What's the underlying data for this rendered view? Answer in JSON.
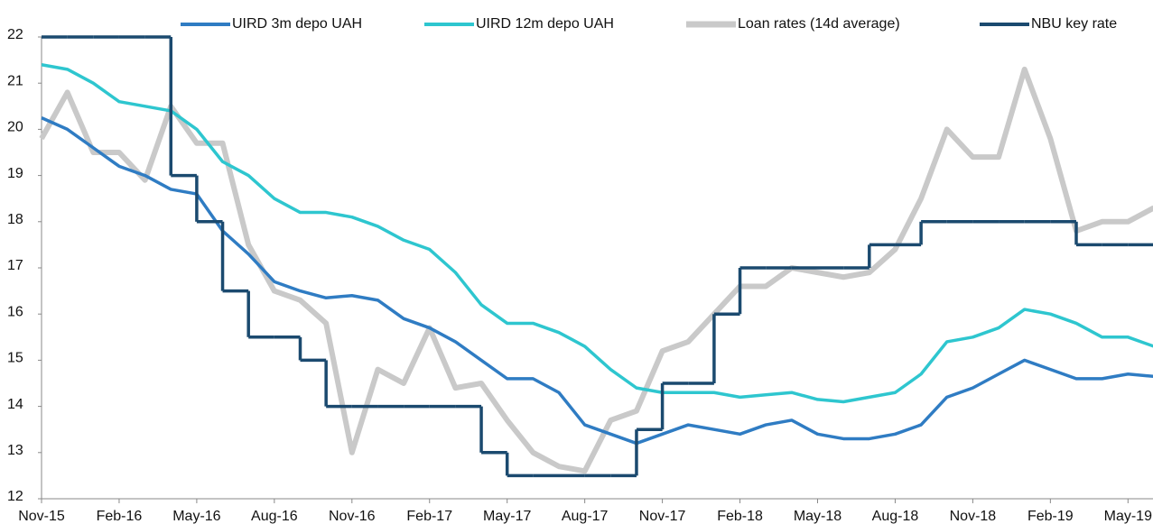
{
  "chart_data": {
    "type": "line",
    "categories": [
      "Nov-15",
      null,
      null,
      "Feb-16",
      null,
      null,
      "May-16",
      null,
      null,
      "Aug-16",
      null,
      null,
      "Nov-16",
      null,
      null,
      "Feb-17",
      null,
      null,
      "May-17",
      null,
      null,
      "Aug-17",
      null,
      null,
      "Nov-17",
      null,
      null,
      "Feb-18",
      null,
      null,
      "May-18",
      null,
      null,
      "Aug-18",
      null,
      null,
      "Nov-18",
      null,
      null,
      "Feb-19",
      null,
      null,
      "May-19",
      null
    ],
    "series": [
      {
        "name": "UIRD 3m depo UAH",
        "color": "#2f7cc3",
        "values": [
          20.25,
          20.0,
          19.6,
          19.2,
          19.0,
          18.7,
          18.6,
          17.8,
          17.3,
          16.7,
          16.5,
          16.35,
          16.4,
          16.3,
          15.9,
          15.7,
          15.4,
          15.0,
          14.6,
          14.6,
          14.3,
          13.6,
          13.4,
          13.2,
          13.4,
          13.6,
          13.5,
          13.4,
          13.6,
          13.7,
          13.4,
          13.3,
          13.3,
          13.4,
          13.6,
          14.2,
          14.4,
          14.7,
          15.0,
          14.8,
          14.6,
          14.6,
          14.7,
          14.65
        ]
      },
      {
        "name": "UIRD 12m depo UAH",
        "color": "#2ec6cf",
        "values": [
          21.4,
          21.3,
          21.0,
          20.6,
          20.5,
          20.4,
          20.0,
          19.3,
          19.0,
          18.5,
          18.2,
          18.2,
          18.1,
          17.9,
          17.6,
          17.4,
          16.9,
          16.2,
          15.8,
          15.8,
          15.6,
          15.3,
          14.8,
          14.4,
          14.3,
          14.3,
          14.3,
          14.2,
          14.25,
          14.3,
          14.15,
          14.1,
          14.2,
          14.3,
          14.7,
          15.4,
          15.5,
          15.7,
          16.1,
          16.0,
          15.8,
          15.5,
          15.5,
          15.3
        ]
      },
      {
        "name": "Loan rates (14d average)",
        "color": "#c9c9c9",
        "values": [
          19.8,
          20.8,
          19.5,
          19.5,
          18.9,
          20.5,
          19.7,
          19.7,
          17.5,
          16.5,
          16.3,
          15.8,
          13.0,
          14.8,
          14.5,
          15.7,
          14.4,
          14.5,
          13.7,
          13.0,
          12.7,
          12.6,
          13.7,
          13.9,
          15.2,
          15.4,
          16.0,
          16.6,
          16.6,
          17.0,
          16.9,
          16.8,
          16.9,
          17.4,
          18.5,
          20.0,
          19.4,
          19.4,
          21.3,
          19.8,
          17.8,
          18.0,
          18.0,
          18.3
        ]
      },
      {
        "name": "NBU key rate",
        "color": "#1b4a6f",
        "style": "step",
        "values": [
          22,
          22,
          22,
          22,
          22,
          19,
          18,
          16.5,
          15.5,
          15.5,
          15,
          14,
          14,
          14,
          14,
          14,
          14,
          13,
          12.5,
          12.5,
          12.5,
          12.5,
          12.5,
          13.5,
          14.5,
          14.5,
          16,
          17,
          17,
          17,
          17,
          17,
          17.5,
          17.5,
          18,
          18,
          18,
          18,
          18,
          18,
          17.5,
          17.5,
          17.5,
          17.5
        ]
      }
    ],
    "ylim": [
      12,
      22
    ],
    "yticks": [
      12,
      13,
      14,
      15,
      16,
      17,
      18,
      19,
      20,
      21,
      22
    ]
  }
}
